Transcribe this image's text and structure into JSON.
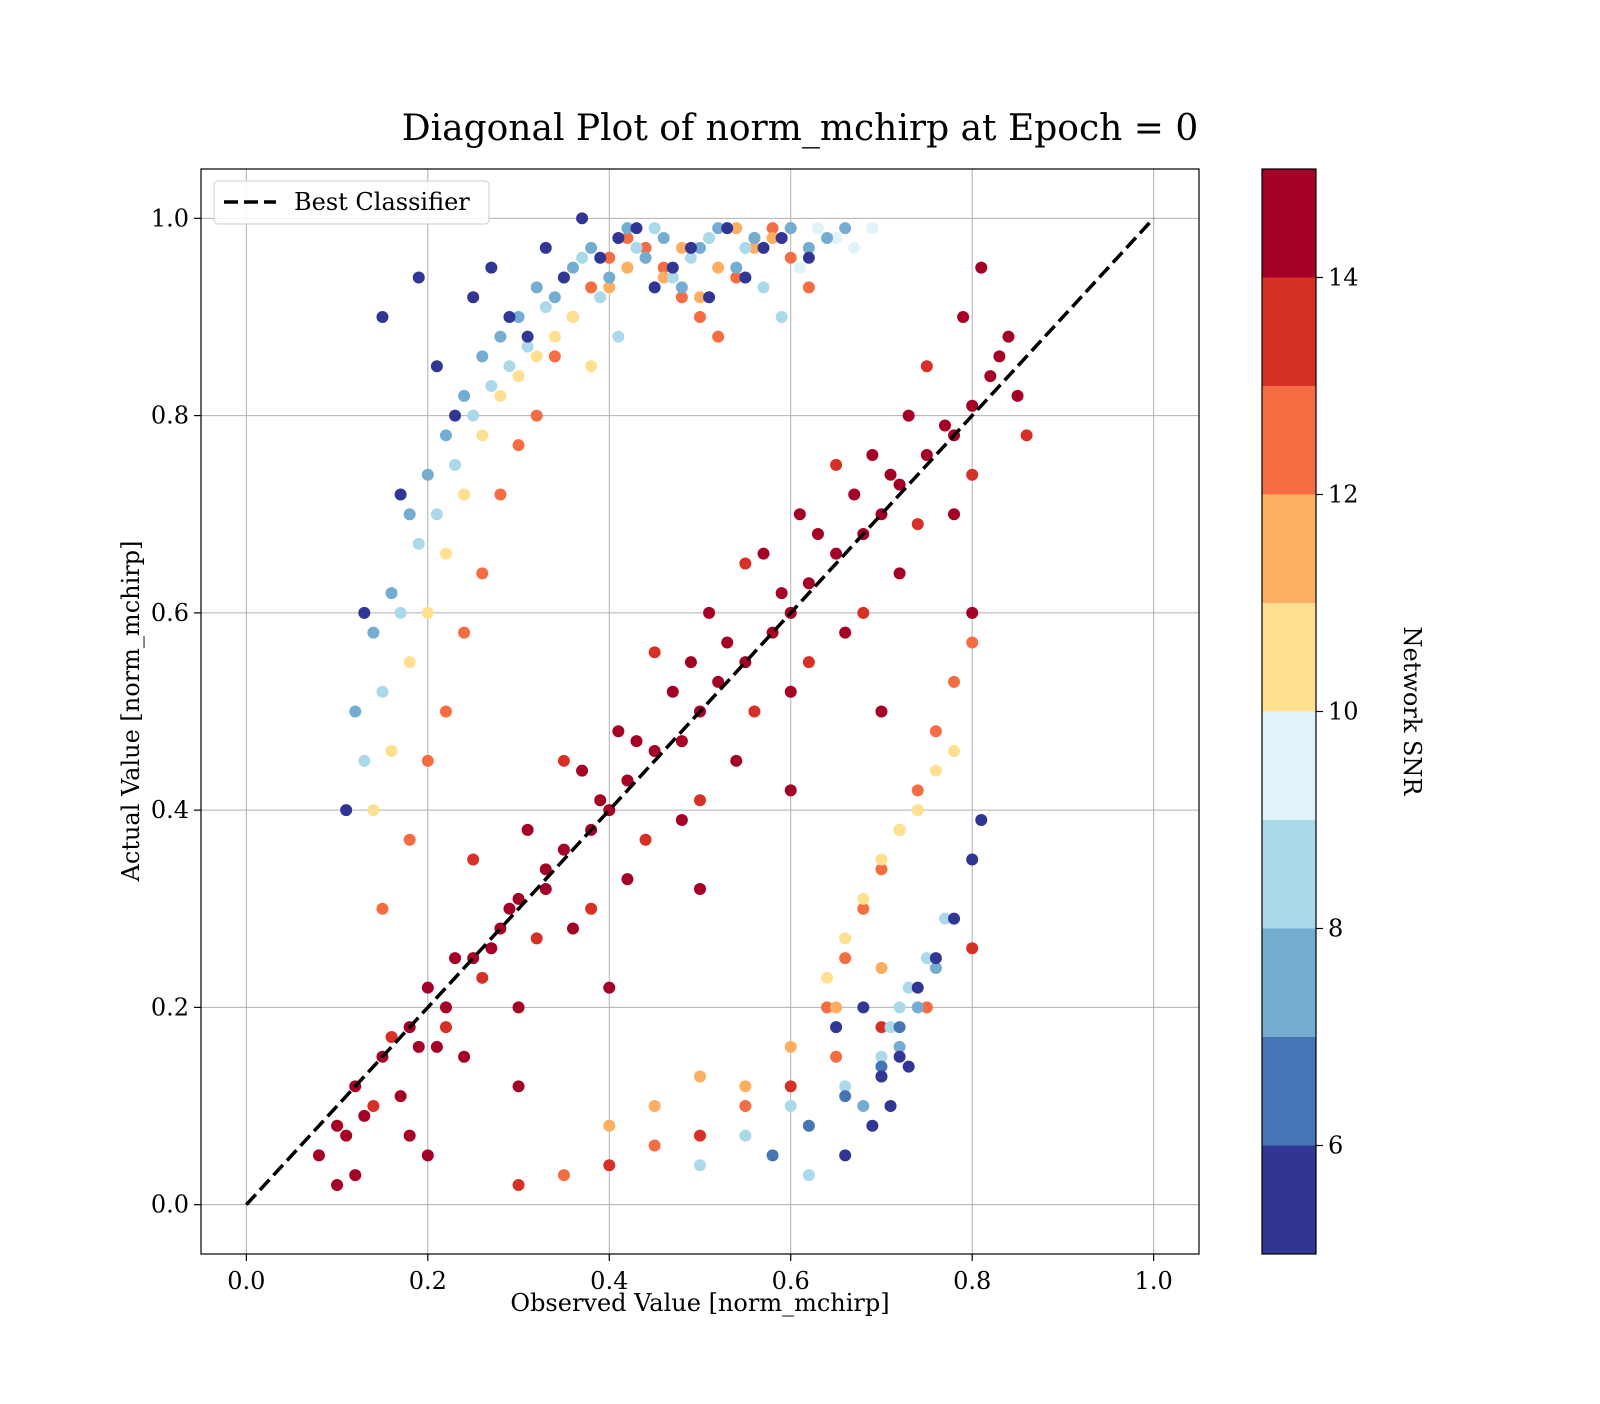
{
  "chart_data": {
    "type": "scatter",
    "title": "Diagonal Plot of norm_mchirp at Epoch = 0",
    "xlabel": "Observed Value [norm_mchirp]",
    "ylabel": "Actual Value [norm_mchirp]",
    "xlim": [
      -0.05,
      1.05
    ],
    "ylim": [
      -0.05,
      1.05
    ],
    "xticks": [
      0.0,
      0.2,
      0.4,
      0.6,
      0.8,
      1.0
    ],
    "yticks": [
      0.0,
      0.2,
      0.4,
      0.6,
      0.8,
      1.0
    ],
    "xtick_labels": [
      "0.0",
      "0.2",
      "0.4",
      "0.6",
      "0.8",
      "1.0"
    ],
    "ytick_labels": [
      "0.0",
      "0.2",
      "0.4",
      "0.6",
      "0.8",
      "1.0"
    ],
    "grid": true,
    "legend": {
      "placement": "upper-left",
      "entries": [
        "Best Classifier"
      ]
    },
    "reference_line": {
      "name": "Best Classifier",
      "style": "dashed",
      "color": "#000000",
      "x": [
        0.0,
        1.0
      ],
      "y": [
        0.0,
        1.0
      ]
    },
    "colorbar": {
      "label": "Network SNR",
      "range": [
        5,
        15
      ],
      "ticks": [
        6,
        8,
        10,
        12,
        14
      ],
      "tick_labels": [
        "6",
        "8",
        "10",
        "12",
        "14"
      ],
      "bins": [
        {
          "from": 5,
          "to": 6,
          "color": "#313695"
        },
        {
          "from": 6,
          "to": 7,
          "color": "#4575b4"
        },
        {
          "from": 7,
          "to": 8,
          "color": "#74add1"
        },
        {
          "from": 8,
          "to": 9,
          "color": "#abd9e9"
        },
        {
          "from": 9,
          "to": 10,
          "color": "#e0f3f8"
        },
        {
          "from": 10,
          "to": 11,
          "color": "#fee090"
        },
        {
          "from": 11,
          "to": 12,
          "color": "#fdae61"
        },
        {
          "from": 12,
          "to": 13,
          "color": "#f46d43"
        },
        {
          "from": 13,
          "to": 14,
          "color": "#d73027"
        },
        {
          "from": 14,
          "to": 15,
          "color": "#a50026"
        }
      ]
    },
    "series": [
      {
        "x": [
          0.08,
          0.1,
          0.12,
          0.15,
          0.18,
          0.2,
          0.22,
          0.25,
          0.28,
          0.3,
          0.33,
          0.35,
          0.38,
          0.4,
          0.42,
          0.45,
          0.48,
          0.5,
          0.52,
          0.55,
          0.58,
          0.6,
          0.62,
          0.65,
          0.68,
          0.7,
          0.72,
          0.75,
          0.78,
          0.8,
          0.82,
          0.84,
          0.12,
          0.18,
          0.24,
          0.3,
          0.36,
          0.42,
          0.48,
          0.54,
          0.6,
          0.66,
          0.72,
          0.78,
          0.25,
          0.35,
          0.45,
          0.55,
          0.65,
          0.75,
          0.2,
          0.3,
          0.4,
          0.5,
          0.6,
          0.7,
          0.8,
          0.14,
          0.16,
          0.22,
          0.26,
          0.32,
          0.38,
          0.44,
          0.5,
          0.56,
          0.62,
          0.68,
          0.74,
          0.8,
          0.86,
          0.13,
          0.19,
          0.27,
          0.33,
          0.39,
          0.41,
          0.47,
          0.53,
          0.59,
          0.63,
          0.67,
          0.71,
          0.77,
          0.83,
          0.85,
          0.1,
          0.11,
          0.17,
          0.21,
          0.23,
          0.29,
          0.31,
          0.37,
          0.43,
          0.49,
          0.51,
          0.57,
          0.61,
          0.69,
          0.73,
          0.79,
          0.81
        ],
        "y": [
          0.05,
          0.08,
          0.12,
          0.15,
          0.18,
          0.22,
          0.2,
          0.25,
          0.28,
          0.31,
          0.32,
          0.36,
          0.38,
          0.4,
          0.43,
          0.46,
          0.47,
          0.5,
          0.53,
          0.55,
          0.58,
          0.6,
          0.63,
          0.66,
          0.68,
          0.7,
          0.73,
          0.76,
          0.78,
          0.81,
          0.84,
          0.88,
          0.03,
          0.07,
          0.15,
          0.2,
          0.28,
          0.33,
          0.39,
          0.45,
          0.52,
          0.58,
          0.64,
          0.7,
          0.35,
          0.45,
          0.56,
          0.65,
          0.75,
          0.85,
          0.05,
          0.12,
          0.22,
          0.32,
          0.42,
          0.5,
          0.6,
          0.1,
          0.17,
          0.18,
          0.23,
          0.27,
          0.3,
          0.37,
          0.41,
          0.5,
          0.55,
          0.6,
          0.69,
          0.74,
          0.78,
          0.09,
          0.16,
          0.26,
          0.34,
          0.41,
          0.48,
          0.52,
          0.57,
          0.62,
          0.68,
          0.72,
          0.74,
          0.79,
          0.86,
          0.82,
          0.02,
          0.07,
          0.11,
          0.16,
          0.25,
          0.3,
          0.38,
          0.44,
          0.47,
          0.55,
          0.6,
          0.66,
          0.7,
          0.76,
          0.8,
          0.9,
          0.95
        ],
        "snr": [
          15,
          15,
          15,
          15,
          15,
          15,
          15,
          15,
          15,
          15,
          15,
          15,
          15,
          15,
          15,
          15,
          15,
          15,
          15,
          15,
          15,
          15,
          15,
          15,
          15,
          15,
          15,
          15,
          15,
          15,
          15,
          15,
          14.5,
          14.5,
          14.5,
          14.5,
          14.5,
          14.5,
          14.5,
          14.5,
          14.5,
          14.5,
          14.5,
          14.5,
          14,
          14,
          14,
          14,
          14,
          14,
          14.5,
          14.5,
          14.5,
          14.5,
          14.5,
          14.5,
          14.5,
          14,
          14,
          14,
          14,
          14,
          14,
          14,
          14,
          14,
          14,
          14,
          14,
          14,
          14,
          15,
          15,
          15,
          15,
          15,
          15,
          15,
          15,
          15,
          15,
          15,
          15,
          15,
          15,
          15,
          15,
          15,
          15,
          15,
          15,
          15,
          15,
          15,
          15,
          15,
          15,
          15,
          15,
          15,
          15,
          15,
          15
        ]
      },
      {
        "x": [
          0.15,
          0.18,
          0.2,
          0.22,
          0.24,
          0.26,
          0.28,
          0.3,
          0.32,
          0.34,
          0.36,
          0.38,
          0.4,
          0.42,
          0.44,
          0.46,
          0.48,
          0.5,
          0.52,
          0.54,
          0.56,
          0.58,
          0.6,
          0.62,
          0.64,
          0.66,
          0.68,
          0.7,
          0.72,
          0.74,
          0.76,
          0.78,
          0.8,
          0.35,
          0.45,
          0.55,
          0.65,
          0.75,
          0.3,
          0.4,
          0.5,
          0.6,
          0.7,
          0.8
        ],
        "y": [
          0.3,
          0.37,
          0.45,
          0.5,
          0.58,
          0.64,
          0.72,
          0.77,
          0.8,
          0.86,
          0.9,
          0.93,
          0.96,
          0.98,
          0.97,
          0.95,
          0.92,
          0.9,
          0.88,
          0.94,
          0.98,
          0.99,
          0.96,
          0.93,
          0.2,
          0.25,
          0.3,
          0.34,
          0.38,
          0.42,
          0.48,
          0.53,
          0.57,
          0.03,
          0.06,
          0.1,
          0.15,
          0.2,
          0.02,
          0.04,
          0.07,
          0.12,
          0.18,
          0.26
        ],
        "snr": [
          12.5,
          12.5,
          12.5,
          12.5,
          12.5,
          12.5,
          12.5,
          12.5,
          12.5,
          12.5,
          12.5,
          12.5,
          12.5,
          12.5,
          12.5,
          12.5,
          12.5,
          12.5,
          12.5,
          12.5,
          12.5,
          12.5,
          12.5,
          12.5,
          12.5,
          12.5,
          12.5,
          12.5,
          12.5,
          12.5,
          12.5,
          12.5,
          12.5,
          12.5,
          12.5,
          12.5,
          12.5,
          12.5,
          13.5,
          13.5,
          13.5,
          13.5,
          13.5,
          13.5
        ]
      },
      {
        "x": [
          0.14,
          0.16,
          0.18,
          0.2,
          0.22,
          0.24,
          0.26,
          0.28,
          0.3,
          0.32,
          0.34,
          0.36,
          0.38,
          0.4,
          0.42,
          0.44,
          0.46,
          0.48,
          0.5,
          0.52,
          0.54,
          0.56,
          0.58,
          0.6,
          0.64,
          0.66,
          0.68,
          0.7,
          0.72,
          0.74,
          0.76,
          0.78,
          0.4,
          0.45,
          0.5,
          0.55,
          0.6,
          0.65,
          0.7
        ],
        "y": [
          0.4,
          0.46,
          0.55,
          0.6,
          0.66,
          0.72,
          0.78,
          0.82,
          0.84,
          0.86,
          0.88,
          0.9,
          0.85,
          0.93,
          0.95,
          0.96,
          0.94,
          0.97,
          0.92,
          0.95,
          0.99,
          0.97,
          0.98,
          0.99,
          0.23,
          0.27,
          0.31,
          0.35,
          0.38,
          0.4,
          0.44,
          0.46,
          0.08,
          0.1,
          0.13,
          0.12,
          0.16,
          0.2,
          0.24
        ],
        "snr": [
          10.5,
          10.5,
          10.5,
          10.5,
          10.5,
          10.5,
          10.5,
          10.5,
          10.5,
          10.5,
          10.5,
          10.5,
          10.5,
          11.5,
          11.5,
          11.5,
          11.5,
          11.5,
          11.5,
          11.5,
          11.5,
          11.5,
          11.5,
          11.5,
          10.5,
          10.5,
          10.5,
          10.5,
          10.5,
          10.5,
          10.5,
          10.5,
          11.5,
          11.5,
          11.5,
          11.5,
          11.5,
          11.5,
          11.5
        ]
      },
      {
        "x": [
          0.13,
          0.15,
          0.17,
          0.19,
          0.21,
          0.23,
          0.25,
          0.27,
          0.29,
          0.31,
          0.33,
          0.35,
          0.37,
          0.39,
          0.41,
          0.43,
          0.45,
          0.47,
          0.49,
          0.51,
          0.53,
          0.55,
          0.57,
          0.59,
          0.61,
          0.63,
          0.65,
          0.67,
          0.69,
          0.71,
          0.73,
          0.75,
          0.77,
          0.5,
          0.55,
          0.6,
          0.62,
          0.66,
          0.7,
          0.72
        ],
        "y": [
          0.45,
          0.52,
          0.6,
          0.67,
          0.7,
          0.75,
          0.8,
          0.83,
          0.85,
          0.87,
          0.91,
          0.94,
          0.96,
          0.92,
          0.88,
          0.97,
          0.99,
          0.94,
          0.96,
          0.98,
          0.99,
          0.97,
          0.93,
          0.9,
          0.95,
          0.99,
          0.98,
          0.97,
          0.99,
          0.18,
          0.22,
          0.25,
          0.29,
          0.04,
          0.07,
          0.1,
          0.03,
          0.12,
          0.15,
          0.2
        ],
        "snr": [
          8.5,
          8.5,
          8.5,
          8.5,
          8.5,
          8.5,
          8.5,
          8.5,
          8.5,
          8.5,
          8.5,
          8.5,
          8.5,
          8.5,
          8.5,
          8.5,
          8.5,
          8.5,
          8.5,
          8.5,
          8.5,
          8.5,
          8.5,
          8.5,
          9.5,
          9.5,
          9.5,
          9.5,
          9.5,
          8.5,
          8.5,
          8.5,
          8.5,
          8.5,
          8.5,
          8.5,
          8.5,
          8.5,
          8.5,
          8.5
        ]
      },
      {
        "x": [
          0.12,
          0.14,
          0.16,
          0.18,
          0.2,
          0.22,
          0.24,
          0.26,
          0.28,
          0.3,
          0.32,
          0.34,
          0.36,
          0.38,
          0.4,
          0.42,
          0.44,
          0.46,
          0.48,
          0.5,
          0.52,
          0.54,
          0.56,
          0.6,
          0.62,
          0.64,
          0.66,
          0.68,
          0.7,
          0.72,
          0.74,
          0.76,
          0.58,
          0.62,
          0.66,
          0.7,
          0.72
        ],
        "y": [
          0.5,
          0.58,
          0.62,
          0.7,
          0.74,
          0.78,
          0.82,
          0.86,
          0.88,
          0.9,
          0.93,
          0.92,
          0.95,
          0.97,
          0.94,
          0.99,
          0.96,
          0.98,
          0.93,
          0.97,
          0.99,
          0.95,
          0.98,
          0.99,
          0.97,
          0.98,
          0.99,
          0.1,
          0.13,
          0.16,
          0.2,
          0.24,
          0.05,
          0.08,
          0.11,
          0.14,
          0.18
        ],
        "snr": [
          7.5,
          7.5,
          7.5,
          7.5,
          7.5,
          7.5,
          7.5,
          7.5,
          7.5,
          7.5,
          7.5,
          7.5,
          7.5,
          7.5,
          7.5,
          7.5,
          7.5,
          7.5,
          7.5,
          7.5,
          7.5,
          7.5,
          7.5,
          7.5,
          7.5,
          7.5,
          7.5,
          7.5,
          7.5,
          7.5,
          7.5,
          7.5,
          6.5,
          6.5,
          6.5,
          6.5,
          6.5
        ]
      },
      {
        "x": [
          0.11,
          0.13,
          0.15,
          0.17,
          0.19,
          0.21,
          0.23,
          0.25,
          0.27,
          0.29,
          0.31,
          0.33,
          0.35,
          0.37,
          0.39,
          0.41,
          0.43,
          0.45,
          0.47,
          0.49,
          0.51,
          0.53,
          0.55,
          0.57,
          0.59,
          0.62,
          0.65,
          0.68,
          0.7,
          0.72,
          0.74,
          0.76,
          0.78,
          0.8,
          0.81,
          0.66,
          0.69,
          0.71,
          0.73
        ],
        "y": [
          0.4,
          0.6,
          0.9,
          0.72,
          0.94,
          0.85,
          0.8,
          0.92,
          0.95,
          0.9,
          0.88,
          0.97,
          0.94,
          1.0,
          0.96,
          0.98,
          0.99,
          0.93,
          0.95,
          0.97,
          0.92,
          0.99,
          0.94,
          0.97,
          0.98,
          0.96,
          0.18,
          0.2,
          0.13,
          0.15,
          0.22,
          0.25,
          0.29,
          0.35,
          0.39,
          0.05,
          0.08,
          0.1,
          0.14
        ],
        "snr": [
          5.5,
          5.5,
          5.5,
          5.5,
          5.5,
          5.5,
          5.5,
          5.5,
          5.5,
          5.5,
          5.5,
          5.5,
          5.5,
          5.5,
          5.5,
          5.5,
          5.5,
          5.5,
          5.5,
          5.5,
          5.5,
          5.5,
          5.5,
          5.5,
          5.5,
          5.5,
          5.5,
          5.5,
          5.5,
          5.5,
          5.5,
          5.5,
          5.5,
          5.5,
          5.5,
          5.5,
          5.5,
          5.5,
          5.5
        ]
      }
    ]
  }
}
